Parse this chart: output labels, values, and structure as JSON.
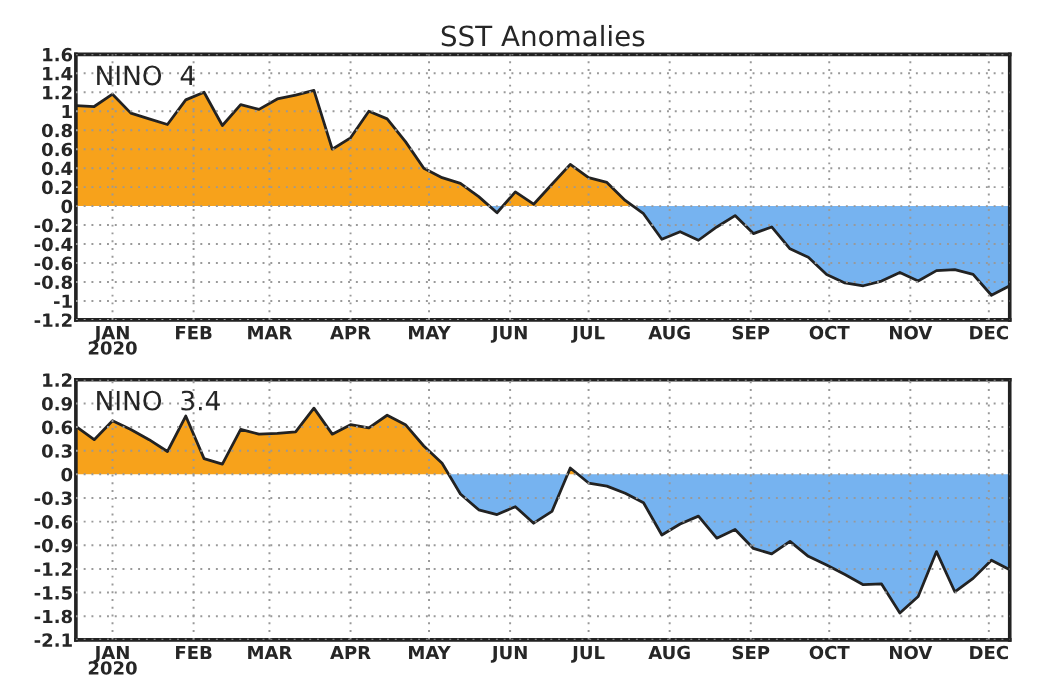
{
  "chart_data": [
    {
      "type": "area",
      "title": "SST Anomalies",
      "annotations": [
        "NINO  4"
      ],
      "x": [
        "2020-01-01",
        "2020-01-08",
        "2020-01-15",
        "2020-01-22",
        "2020-01-29",
        "2020-02-05",
        "2020-02-12",
        "2020-02-19",
        "2020-02-26",
        "2020-03-04",
        "2020-03-11",
        "2020-03-18",
        "2020-03-25",
        "2020-04-01",
        "2020-04-08",
        "2020-04-15",
        "2020-04-22",
        "2020-04-29",
        "2020-05-06",
        "2020-05-13",
        "2020-05-20",
        "2020-05-27",
        "2020-06-03",
        "2020-06-10",
        "2020-06-17",
        "2020-06-24",
        "2020-07-01",
        "2020-07-08",
        "2020-07-15",
        "2020-07-22",
        "2020-07-29",
        "2020-08-05",
        "2020-08-12",
        "2020-08-19",
        "2020-08-26",
        "2020-09-02",
        "2020-09-09",
        "2020-09-16",
        "2020-09-23",
        "2020-09-30",
        "2020-10-07",
        "2020-10-14",
        "2020-10-21",
        "2020-10-28",
        "2020-11-04",
        "2020-11-11",
        "2020-11-18",
        "2020-11-25",
        "2020-12-02",
        "2020-12-09",
        "2020-12-16",
        "2020-12-23"
      ],
      "series": [
        {
          "color": "#f7a21b",
          "x": [
            "2020-01-01",
            "2020-01-08",
            "2020-01-15",
            "2020-01-22",
            "2020-01-29",
            "2020-02-05",
            "2020-02-12",
            "2020-02-19",
            "2020-02-26",
            "2020-03-04",
            "2020-03-11",
            "2020-03-18",
            "2020-03-25",
            "2020-04-01",
            "2020-04-08",
            "2020-04-15",
            "2020-04-22",
            "2020-04-29",
            "2020-05-06",
            "2020-05-13",
            "2020-05-20",
            "2020-05-27",
            "2020-06-03",
            "2020-06-07",
            "2020-06-12",
            "2020-06-17",
            "2020-06-24",
            "2020-07-01",
            "2020-07-08",
            "2020-07-15",
            "2020-07-22",
            "2020-07-29",
            "2020-08-01"
          ],
          "values": [
            1.06,
            1.05,
            1.18,
            0.98,
            0.92,
            0.86,
            1.12,
            1.2,
            0.85,
            1.07,
            1.02,
            1.13,
            1.17,
            1.22,
            0.6,
            0.72,
            1.0,
            0.92,
            0.68,
            0.4,
            0.3,
            0.24,
            0.1,
            0,
            0,
            0.15,
            0.02,
            0.23,
            0.44,
            0.3,
            0.25,
            0.06,
            0
          ]
        },
        {
          "color": "#76b3f0",
          "x": [
            "2020-06-07",
            "2020-06-10",
            "2020-06-12",
            "2020-08-01",
            "2020-08-05",
            "2020-08-12",
            "2020-08-19",
            "2020-08-26",
            "2020-09-02",
            "2020-09-09",
            "2020-09-16",
            "2020-09-23",
            "2020-09-30",
            "2020-10-07",
            "2020-10-14",
            "2020-10-21",
            "2020-10-28",
            "2020-11-04",
            "2020-11-11",
            "2020-11-18",
            "2020-11-25",
            "2020-12-02",
            "2020-12-09",
            "2020-12-16",
            "2020-12-23"
          ],
          "values": [
            0,
            -0.07,
            0,
            0,
            -0.08,
            -0.35,
            -0.27,
            -0.36,
            -0.22,
            -0.1,
            -0.29,
            -0.22,
            -0.45,
            -0.54,
            -0.72,
            -0.81,
            -0.84,
            -0.79,
            -0.7,
            -0.79,
            -0.68,
            -0.67,
            -0.72,
            -0.94,
            -0.84
          ]
        },
        {
          "type": "line",
          "color": "#222222",
          "values": [
            1.06,
            1.05,
            1.18,
            0.98,
            0.92,
            0.86,
            1.12,
            1.2,
            0.85,
            1.07,
            1.02,
            1.13,
            1.17,
            1.22,
            0.6,
            0.72,
            1.0,
            0.92,
            0.68,
            0.4,
            0.3,
            0.24,
            0.1,
            -0.07,
            0.15,
            0.02,
            0.23,
            0.44,
            0.3,
            0.25,
            0.06,
            -0.08,
            -0.35,
            -0.27,
            -0.36,
            -0.22,
            -0.1,
            -0.29,
            -0.22,
            -0.45,
            -0.54,
            -0.72,
            -0.81,
            -0.84,
            -0.79,
            -0.7,
            -0.79,
            -0.68,
            -0.67,
            -0.72,
            -0.94,
            -0.84
          ]
        }
      ],
      "xlim": [
        "2020-01-01",
        "2020-12-23"
      ],
      "xticks": [
        {
          "value": "2020-01-15",
          "label": "JAN\n2020"
        },
        {
          "value": "2020-02-15",
          "label": "FEB"
        },
        {
          "value": "2020-03-15",
          "label": "MAR"
        },
        {
          "value": "2020-04-15",
          "label": "APR"
        },
        {
          "value": "2020-05-15",
          "label": "MAY"
        },
        {
          "value": "2020-06-15",
          "label": "JUN"
        },
        {
          "value": "2020-07-15",
          "label": "JUL"
        },
        {
          "value": "2020-08-15",
          "label": "AUG"
        },
        {
          "value": "2020-09-15",
          "label": "SEP"
        },
        {
          "value": "2020-10-15",
          "label": "OCT"
        },
        {
          "value": "2020-11-15",
          "label": "NOV"
        },
        {
          "value": "2020-12-15",
          "label": "DEC"
        }
      ],
      "ylim": [
        -1.2,
        1.6
      ],
      "yticks": [
        -1.2,
        -1,
        -0.8,
        -0.6,
        -0.4,
        -0.2,
        0,
        0.2,
        0.4,
        0.6,
        0.8,
        1,
        1.2,
        1.4,
        1.6
      ],
      "grid": true
    },
    {
      "type": "area",
      "annotations": [
        "NINO  3.4"
      ],
      "x": [
        "2020-01-01",
        "2020-01-08",
        "2020-01-15",
        "2020-01-22",
        "2020-01-29",
        "2020-02-05",
        "2020-02-12",
        "2020-02-19",
        "2020-02-26",
        "2020-03-04",
        "2020-03-11",
        "2020-03-18",
        "2020-03-25",
        "2020-04-01",
        "2020-04-08",
        "2020-04-15",
        "2020-04-22",
        "2020-04-29",
        "2020-05-06",
        "2020-05-13",
        "2020-05-20",
        "2020-05-27",
        "2020-06-03",
        "2020-06-10",
        "2020-06-17",
        "2020-06-24",
        "2020-07-01",
        "2020-07-08",
        "2020-07-15",
        "2020-07-22",
        "2020-07-29",
        "2020-08-05",
        "2020-08-12",
        "2020-08-19",
        "2020-08-26",
        "2020-09-02",
        "2020-09-09",
        "2020-09-16",
        "2020-09-23",
        "2020-09-30",
        "2020-10-07",
        "2020-10-14",
        "2020-10-21",
        "2020-10-28",
        "2020-11-04",
        "2020-11-11",
        "2020-11-18",
        "2020-11-25",
        "2020-12-02",
        "2020-12-09",
        "2020-12-16",
        "2020-12-23"
      ],
      "series": [
        {
          "color": "#f7a21b",
          "x": [
            "2020-01-01",
            "2020-01-08",
            "2020-01-15",
            "2020-01-22",
            "2020-01-29",
            "2020-02-05",
            "2020-02-12",
            "2020-02-19",
            "2020-02-26",
            "2020-03-04",
            "2020-03-11",
            "2020-03-18",
            "2020-03-25",
            "2020-04-01",
            "2020-04-08",
            "2020-04-15",
            "2020-04-22",
            "2020-04-29",
            "2020-05-06",
            "2020-05-13",
            "2020-05-20",
            "2020-05-22",
            "2020-07-07",
            "2020-07-08",
            "2020-07-11"
          ],
          "values": [
            0.61,
            0.44,
            0.68,
            0.57,
            0.44,
            0.29,
            0.74,
            0.2,
            0.13,
            0.57,
            0.51,
            0.52,
            0.54,
            0.84,
            0.51,
            0.63,
            0.59,
            0.75,
            0.63,
            0.36,
            0.14,
            0,
            0,
            0.08,
            0
          ]
        },
        {
          "color": "#76b3f0",
          "x": [
            "2020-05-22",
            "2020-05-27",
            "2020-06-03",
            "2020-06-10",
            "2020-06-17",
            "2020-06-24",
            "2020-07-01",
            "2020-07-07",
            "2020-07-11",
            "2020-07-15",
            "2020-07-22",
            "2020-07-29",
            "2020-08-05",
            "2020-08-12",
            "2020-08-19",
            "2020-08-26",
            "2020-09-02",
            "2020-09-09",
            "2020-09-16",
            "2020-09-23",
            "2020-09-30",
            "2020-10-07",
            "2020-10-14",
            "2020-10-21",
            "2020-10-28",
            "2020-11-04",
            "2020-11-11",
            "2020-11-18",
            "2020-11-25",
            "2020-12-02",
            "2020-12-09",
            "2020-12-16",
            "2020-12-23"
          ],
          "values": [
            0,
            -0.25,
            -0.45,
            -0.51,
            -0.41,
            -0.62,
            -0.47,
            0,
            0,
            -0.11,
            -0.15,
            -0.24,
            -0.36,
            -0.77,
            -0.63,
            -0.53,
            -0.81,
            -0.7,
            -0.94,
            -1.01,
            -0.85,
            -1.04,
            -1.15,
            -1.27,
            -1.4,
            -1.39,
            -1.76,
            -1.55,
            -0.98,
            -1.49,
            -1.32,
            -1.09,
            -1.21
          ]
        },
        {
          "type": "line",
          "color": "#222222",
          "values": [
            0.61,
            0.44,
            0.68,
            0.57,
            0.44,
            0.29,
            0.74,
            0.2,
            0.13,
            0.57,
            0.51,
            0.52,
            0.54,
            0.84,
            0.51,
            0.63,
            0.59,
            0.75,
            0.63,
            0.36,
            0.14,
            -0.25,
            -0.45,
            -0.51,
            -0.41,
            -0.62,
            -0.47,
            0.08,
            -0.11,
            -0.15,
            -0.24,
            -0.36,
            -0.77,
            -0.63,
            -0.53,
            -0.81,
            -0.7,
            -0.94,
            -1.01,
            -0.85,
            -1.04,
            -1.15,
            -1.27,
            -1.4,
            -1.39,
            -1.76,
            -1.55,
            -0.98,
            -1.49,
            -1.32,
            -1.09,
            -1.21
          ]
        }
      ],
      "xlim": [
        "2020-01-01",
        "2020-12-23"
      ],
      "xticks": [
        {
          "value": "2020-01-15",
          "label": "JAN\n2020"
        },
        {
          "value": "2020-02-15",
          "label": "FEB"
        },
        {
          "value": "2020-03-15",
          "label": "MAR"
        },
        {
          "value": "2020-04-15",
          "label": "APR"
        },
        {
          "value": "2020-05-15",
          "label": "MAY"
        },
        {
          "value": "2020-06-15",
          "label": "JUN"
        },
        {
          "value": "2020-07-15",
          "label": "JUL"
        },
        {
          "value": "2020-08-15",
          "label": "AUG"
        },
        {
          "value": "2020-09-15",
          "label": "SEP"
        },
        {
          "value": "2020-10-15",
          "label": "OCT"
        },
        {
          "value": "2020-11-15",
          "label": "NOV"
        },
        {
          "value": "2020-12-15",
          "label": "DEC"
        }
      ],
      "ylim": [
        -2.1,
        1.2
      ],
      "yticks": [
        -2.1,
        -1.8,
        -1.5,
        -1.2,
        -0.9,
        -0.6,
        -0.3,
        0,
        0.3,
        0.6,
        0.9,
        1.2
      ],
      "grid": true
    }
  ]
}
